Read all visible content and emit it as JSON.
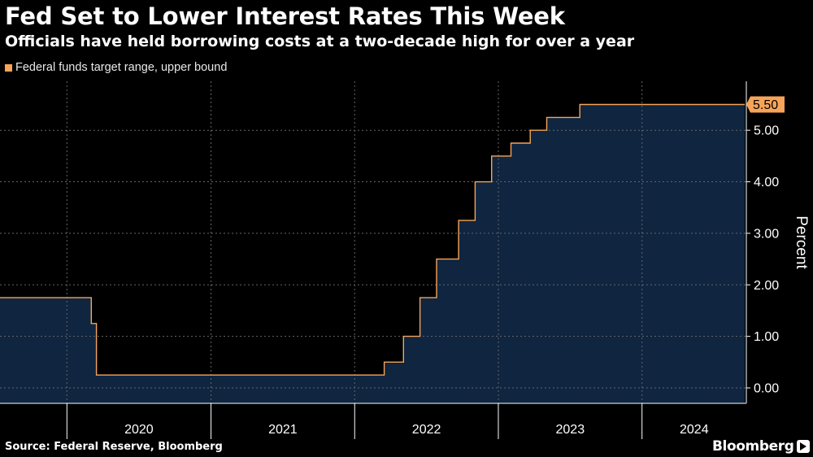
{
  "header": {
    "title": "Fed Set to Lower Interest Rates This Week",
    "subtitle": "Officials have held borrowing costs at a two-decade high for over a year"
  },
  "footer": {
    "source": "Source: Federal Reserve, Bloomberg",
    "brand": "Bloomberg"
  },
  "colors": {
    "background": "#000000",
    "area_fill": "#0f2540",
    "line": "#f5a45a",
    "grid": "#666666",
    "label_box": "#f5a45a"
  },
  "chart_data": {
    "type": "area",
    "title": "Fed Set to Lower Interest Rates This Week",
    "subtitle": "Officials have held borrowing costs at a two-decade high for over a year",
    "ylabel": "Percent",
    "ylim": [
      -0.3,
      5.95
    ],
    "xlim": [
      "2019-07-15",
      "2024-09-22"
    ],
    "y_ticks": [
      "0.00",
      "1.00",
      "2.00",
      "3.00",
      "4.00",
      "5.00"
    ],
    "x_ticks": [
      "2020",
      "2021",
      "2022",
      "2023",
      "2024"
    ],
    "y_axis_side": "right",
    "grid": true,
    "legend_position": "top-left",
    "last_value_label": "5.50",
    "series": [
      {
        "name": "Federal funds target range, upper bound",
        "x": [
          "2019-07-15",
          "2019-10-31",
          "2020-03-03",
          "2020-03-16",
          "2022-03-17",
          "2022-05-05",
          "2022-06-16",
          "2022-07-28",
          "2022-09-22",
          "2022-11-03",
          "2022-12-15",
          "2023-02-02",
          "2023-03-23",
          "2023-05-04",
          "2023-07-27",
          "2024-09-18"
        ],
        "y": [
          1.75,
          1.75,
          1.25,
          0.25,
          0.5,
          1.0,
          1.75,
          2.5,
          3.25,
          4.0,
          4.5,
          4.75,
          5.0,
          5.25,
          5.5,
          5.5
        ]
      }
    ]
  }
}
